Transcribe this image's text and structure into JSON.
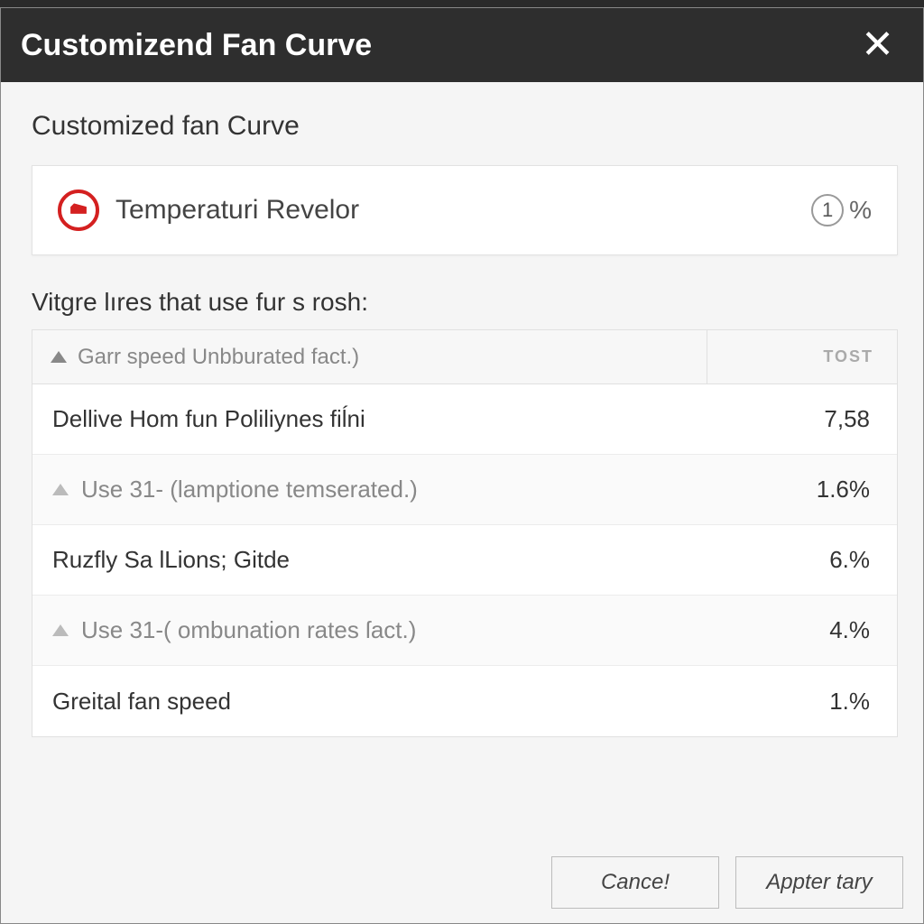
{
  "window": {
    "title": "Customizend Fan Curve"
  },
  "subtitle": "Customized fan Curve",
  "sensor": {
    "label": "Temperaturi Revelor",
    "value_badge": "1",
    "unit": "%"
  },
  "table": {
    "caption": "Vitgre lıres that use fur s rosh:",
    "header_left": "Garr speed Unbburated fact.)",
    "header_right": "TOST",
    "rows": [
      {
        "label": "Dellive Hom fun Poliliynes fiĺni",
        "value": "7,58",
        "has_tri": false,
        "muted": false
      },
      {
        "label": "Use 31- (lamptione temserated.)",
        "value": "1.6%",
        "has_tri": true,
        "muted": true
      },
      {
        "label": "Ruzfly Sa lLions; Gitde",
        "value": "6.%",
        "has_tri": false,
        "muted": false
      },
      {
        "label": "Use 31-( ombunation rates ſact.)",
        "value": "4.%",
        "has_tri": true,
        "muted": true
      },
      {
        "label": "Greital fan speed",
        "value": "1.%",
        "has_tri": false,
        "muted": false
      }
    ]
  },
  "buttons": {
    "cancel": "Cance!",
    "apply": "Appter tary"
  },
  "colors": {
    "titlebar_bg": "#2e2e2e",
    "titlebar_text": "#ffffff",
    "body_bg": "#f5f5f5",
    "card_bg": "#ffffff",
    "border": "#e0e0e0",
    "accent": "#d42020",
    "text_primary": "#333333",
    "text_muted": "#888888"
  }
}
